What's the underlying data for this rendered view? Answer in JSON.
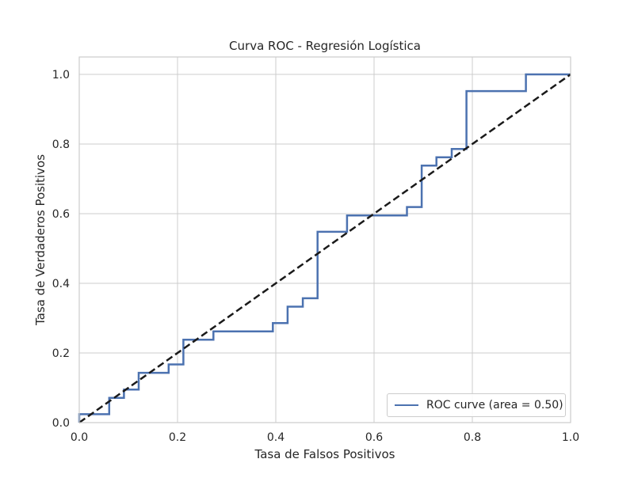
{
  "chart_data": {
    "type": "line",
    "title": "Curva ROC - Regresión Logística",
    "xlabel": "Tasa de Falsos Positivos",
    "ylabel": "Tasa de Verdaderos Positivos",
    "xlim": [
      0.0,
      1.0
    ],
    "ylim": [
      0.0,
      1.05
    ],
    "xticks": [
      "0.0",
      "0.2",
      "0.4",
      "0.6",
      "0.8",
      "1.0"
    ],
    "yticks": [
      "0.0",
      "0.2",
      "0.4",
      "0.6",
      "0.8",
      "1.0"
    ],
    "grid": true,
    "legend_position": "lower-right",
    "series": [
      {
        "name": "ROC curve (area = 0.50)",
        "color": "#4c72b0",
        "style": "solid",
        "points": [
          [
            0.0,
            0.0
          ],
          [
            0.0,
            0.024
          ],
          [
            0.061,
            0.024
          ],
          [
            0.061,
            0.071
          ],
          [
            0.091,
            0.071
          ],
          [
            0.091,
            0.095
          ],
          [
            0.121,
            0.095
          ],
          [
            0.121,
            0.143
          ],
          [
            0.182,
            0.143
          ],
          [
            0.182,
            0.167
          ],
          [
            0.212,
            0.167
          ],
          [
            0.212,
            0.238
          ],
          [
            0.273,
            0.238
          ],
          [
            0.273,
            0.262
          ],
          [
            0.394,
            0.262
          ],
          [
            0.394,
            0.286
          ],
          [
            0.424,
            0.286
          ],
          [
            0.424,
            0.333
          ],
          [
            0.455,
            0.333
          ],
          [
            0.455,
            0.357
          ],
          [
            0.485,
            0.357
          ],
          [
            0.485,
            0.548
          ],
          [
            0.545,
            0.548
          ],
          [
            0.545,
            0.595
          ],
          [
            0.667,
            0.595
          ],
          [
            0.667,
            0.619
          ],
          [
            0.697,
            0.619
          ],
          [
            0.697,
            0.738
          ],
          [
            0.727,
            0.738
          ],
          [
            0.727,
            0.762
          ],
          [
            0.758,
            0.762
          ],
          [
            0.758,
            0.786
          ],
          [
            0.788,
            0.786
          ],
          [
            0.788,
            0.952
          ],
          [
            0.909,
            0.952
          ],
          [
            0.909,
            1.0
          ],
          [
            1.0,
            1.0
          ]
        ]
      },
      {
        "color": "#1a1a1a",
        "style": "dashed",
        "points": [
          [
            0.0,
            0.0
          ],
          [
            1.0,
            1.0
          ]
        ]
      }
    ]
  }
}
